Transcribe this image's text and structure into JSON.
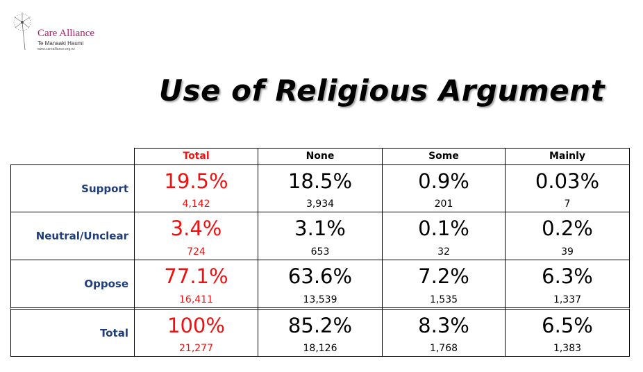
{
  "logo": {
    "name": "Care Alliance",
    "tagline": "Te Manaaki Haumi",
    "url": "www.carealliance.org.nz"
  },
  "title": "Use of Religious Argument",
  "table": {
    "columns": [
      "Total",
      "None",
      "Some",
      "Mainly"
    ],
    "rows": [
      {
        "label": "Support",
        "cells": [
          {
            "percent": "19.5%",
            "count": "4,142"
          },
          {
            "percent": "18.5%",
            "count": "3,934"
          },
          {
            "percent": "0.9%",
            "count": "201"
          },
          {
            "percent": "0.03%",
            "count": "7"
          }
        ]
      },
      {
        "label": "Neutral/Unclear",
        "cells": [
          {
            "percent": "3.4%",
            "count": "724"
          },
          {
            "percent": "3.1%",
            "count": "653"
          },
          {
            "percent": "0.1%",
            "count": "32"
          },
          {
            "percent": "0.2%",
            "count": "39"
          }
        ]
      },
      {
        "label": "Oppose",
        "cells": [
          {
            "percent": "77.1%",
            "count": "16,411"
          },
          {
            "percent": "63.6%",
            "count": "13,539"
          },
          {
            "percent": "7.2%",
            "count": "1,535"
          },
          {
            "percent": "6.3%",
            "count": "1,337"
          }
        ]
      },
      {
        "label": "Total",
        "cells": [
          {
            "percent": "100%",
            "count": "21,277"
          },
          {
            "percent": "85.2%",
            "count": "18,126"
          },
          {
            "percent": "8.3%",
            "count": "1,768"
          },
          {
            "percent": "6.5%",
            "count": "1,383"
          }
        ]
      }
    ]
  }
}
